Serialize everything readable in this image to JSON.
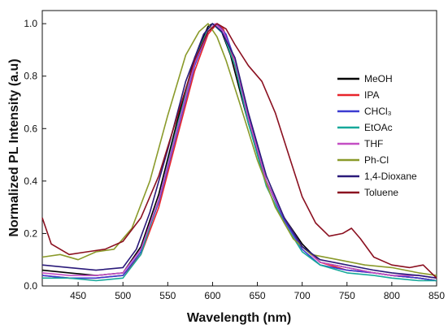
{
  "chart_data": {
    "type": "line",
    "title": "",
    "xlabel": "Wavelength (nm)",
    "ylabel": "Normalized PL Intensity (a.u)",
    "xlim": [
      410,
      850
    ],
    "ylim": [
      0,
      1.05
    ],
    "x_ticks": [
      "450",
      "500",
      "550",
      "600",
      "650",
      "700",
      "750",
      "800",
      "850"
    ],
    "y_ticks": [
      "0.0",
      "0.2",
      "0.4",
      "0.6",
      "0.8",
      "1.0"
    ],
    "grid": false,
    "legend_position": "right",
    "series": [
      {
        "name": "MeOH",
        "color": "#000000",
        "x": [
          410,
          440,
          470,
          500,
          520,
          540,
          560,
          580,
          595,
          600,
          610,
          620,
          640,
          660,
          680,
          700,
          720,
          750,
          780,
          800,
          830,
          850
        ],
        "y": [
          0.06,
          0.05,
          0.04,
          0.05,
          0.15,
          0.35,
          0.62,
          0.87,
          0.99,
          1.0,
          0.97,
          0.88,
          0.62,
          0.4,
          0.26,
          0.16,
          0.09,
          0.07,
          0.05,
          0.04,
          0.03,
          0.02
        ]
      },
      {
        "name": "IPA",
        "color": "#e8242b",
        "x": [
          410,
          440,
          470,
          500,
          520,
          540,
          560,
          580,
          595,
          605,
          612,
          620,
          640,
          660,
          680,
          700,
          720,
          750,
          780,
          800,
          830,
          850
        ],
        "y": [
          0.04,
          0.03,
          0.03,
          0.04,
          0.12,
          0.3,
          0.56,
          0.82,
          0.96,
          1.0,
          0.98,
          0.9,
          0.64,
          0.4,
          0.25,
          0.15,
          0.09,
          0.06,
          0.05,
          0.04,
          0.03,
          0.02
        ]
      },
      {
        "name": "CHCl₃",
        "color": "#3b3bd1",
        "x": [
          410,
          440,
          470,
          500,
          520,
          540,
          560,
          580,
          595,
          605,
          615,
          625,
          640,
          660,
          680,
          700,
          720,
          750,
          780,
          800,
          830,
          850
        ],
        "y": [
          0.04,
          0.03,
          0.03,
          0.04,
          0.13,
          0.32,
          0.58,
          0.84,
          0.97,
          1.0,
          0.96,
          0.86,
          0.65,
          0.4,
          0.25,
          0.14,
          0.08,
          0.06,
          0.05,
          0.04,
          0.03,
          0.02
        ]
      },
      {
        "name": "EtOAc",
        "color": "#16a89a",
        "x": [
          410,
          440,
          470,
          500,
          520,
          540,
          560,
          580,
          595,
          600,
          612,
          625,
          640,
          660,
          680,
          700,
          720,
          750,
          780,
          800,
          830,
          850
        ],
        "y": [
          0.03,
          0.03,
          0.02,
          0.03,
          0.12,
          0.33,
          0.6,
          0.86,
          0.98,
          1.0,
          0.96,
          0.84,
          0.62,
          0.38,
          0.24,
          0.13,
          0.08,
          0.05,
          0.04,
          0.03,
          0.02,
          0.02
        ]
      },
      {
        "name": "THF",
        "color": "#c44fc4",
        "x": [
          410,
          440,
          470,
          500,
          520,
          540,
          560,
          580,
          595,
          603,
          612,
          625,
          640,
          660,
          680,
          700,
          720,
          750,
          780,
          800,
          830,
          850
        ],
        "y": [
          0.05,
          0.04,
          0.04,
          0.05,
          0.14,
          0.33,
          0.59,
          0.85,
          0.97,
          1.0,
          0.97,
          0.86,
          0.64,
          0.4,
          0.26,
          0.15,
          0.09,
          0.07,
          0.05,
          0.04,
          0.04,
          0.03
        ]
      },
      {
        "name": "Ph-Cl",
        "color": "#8a9a2a",
        "x": [
          410,
          430,
          450,
          470,
          490,
          510,
          530,
          550,
          570,
          585,
          595,
          605,
          615,
          630,
          650,
          670,
          690,
          710,
          740,
          770,
          800,
          830,
          850
        ],
        "y": [
          0.11,
          0.12,
          0.1,
          0.13,
          0.14,
          0.22,
          0.4,
          0.65,
          0.88,
          0.97,
          1.0,
          0.95,
          0.86,
          0.7,
          0.48,
          0.3,
          0.18,
          0.12,
          0.1,
          0.08,
          0.07,
          0.05,
          0.04
        ]
      },
      {
        "name": "1,4-Dioxane",
        "color": "#2a1a7a",
        "x": [
          410,
          440,
          470,
          500,
          515,
          530,
          550,
          570,
          590,
          600,
          610,
          625,
          640,
          660,
          680,
          700,
          720,
          750,
          780,
          800,
          830,
          850
        ],
        "y": [
          0.08,
          0.07,
          0.06,
          0.07,
          0.14,
          0.28,
          0.52,
          0.78,
          0.96,
          1.0,
          0.97,
          0.87,
          0.66,
          0.42,
          0.26,
          0.15,
          0.1,
          0.08,
          0.06,
          0.05,
          0.04,
          0.03
        ]
      },
      {
        "name": "Toluene",
        "color": "#8b1020",
        "x": [
          410,
          420,
          440,
          460,
          480,
          500,
          520,
          540,
          560,
          580,
          595,
          605,
          615,
          625,
          640,
          655,
          670,
          685,
          700,
          715,
          730,
          745,
          755,
          765,
          780,
          800,
          820,
          835,
          850
        ],
        "y": [
          0.26,
          0.16,
          0.12,
          0.13,
          0.14,
          0.17,
          0.26,
          0.42,
          0.64,
          0.86,
          0.97,
          1.0,
          0.98,
          0.92,
          0.84,
          0.78,
          0.66,
          0.5,
          0.34,
          0.24,
          0.19,
          0.2,
          0.22,
          0.18,
          0.11,
          0.08,
          0.07,
          0.08,
          0.03
        ]
      }
    ]
  }
}
